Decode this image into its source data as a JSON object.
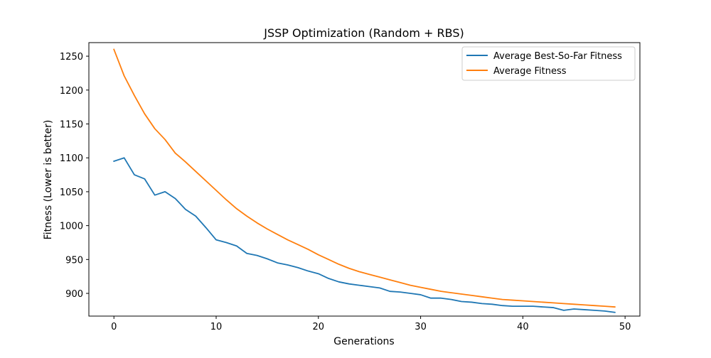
{
  "chart_data": {
    "type": "line",
    "title": "JSSP Optimization (Random + RBS)",
    "xlabel": "Generations",
    "ylabel": "Fitness (Lower is better)",
    "xlim": [
      -2.45,
      51.45
    ],
    "ylim": [
      866.5,
      1270
    ],
    "xticks": [
      0,
      10,
      20,
      30,
      40,
      50
    ],
    "yticks": [
      900,
      950,
      1000,
      1050,
      1100,
      1150,
      1200,
      1250
    ],
    "grid": false,
    "legend_position": "top-right",
    "series": [
      {
        "name": "Average Best-So-Far Fitness",
        "color": "#1f77b4",
        "x": [
          0,
          1,
          2,
          3,
          4,
          5,
          6,
          7,
          8,
          9,
          10,
          11,
          12,
          13,
          14,
          15,
          16,
          17,
          18,
          19,
          20,
          21,
          22,
          23,
          24,
          25,
          26,
          27,
          28,
          29,
          30,
          31,
          32,
          33,
          34,
          35,
          36,
          37,
          38,
          39,
          40,
          41,
          42,
          43,
          44,
          45,
          46,
          47,
          48,
          49
        ],
        "y": [
          1095,
          1100,
          1075,
          1069,
          1045,
          1050,
          1040,
          1024,
          1014,
          997,
          979,
          975,
          970,
          959,
          956,
          951,
          945,
          942,
          938,
          933,
          929,
          922,
          917,
          914,
          912,
          910,
          908,
          903,
          902,
          900,
          898,
          893,
          893,
          891,
          888,
          887,
          885,
          884,
          882,
          881,
          881,
          881,
          880,
          879,
          875,
          877,
          876,
          875,
          874,
          872
        ]
      },
      {
        "name": "Average Fitness",
        "color": "#ff7f0e",
        "x": [
          0,
          1,
          2,
          3,
          4,
          5,
          6,
          7,
          8,
          9,
          10,
          11,
          12,
          13,
          14,
          15,
          16,
          17,
          18,
          19,
          20,
          21,
          22,
          23,
          24,
          25,
          26,
          27,
          28,
          29,
          30,
          31,
          32,
          33,
          34,
          35,
          36,
          37,
          38,
          39,
          40,
          41,
          42,
          43,
          44,
          45,
          46,
          47,
          48,
          49
        ],
        "y": [
          1260,
          1221,
          1192,
          1165,
          1143,
          1127,
          1107,
          1094,
          1080,
          1066,
          1052,
          1038,
          1025,
          1014,
          1004,
          995,
          987,
          979,
          972,
          965,
          957,
          950,
          943,
          937,
          932,
          928,
          924,
          920,
          916,
          912,
          909,
          906,
          903,
          901,
          899,
          897,
          895,
          893,
          891,
          890,
          889,
          888,
          887,
          886,
          885,
          884,
          883,
          882,
          881,
          880
        ]
      }
    ]
  }
}
